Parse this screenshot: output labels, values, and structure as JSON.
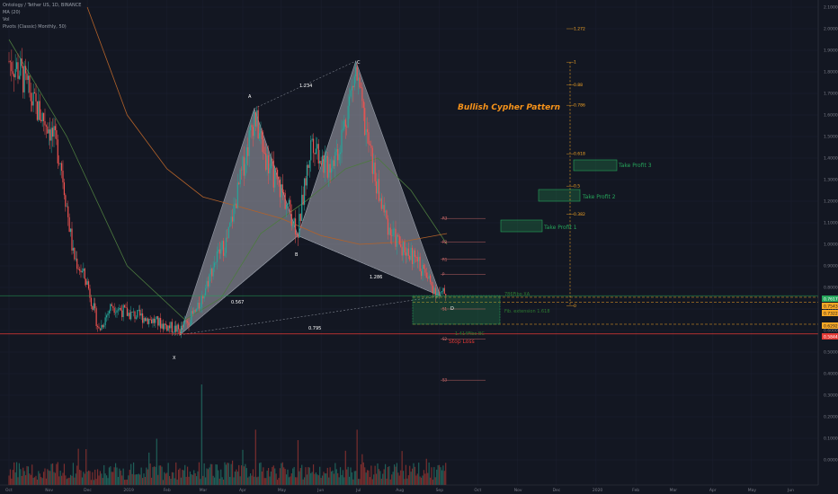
{
  "legend": {
    "symbol_line": "Ontology / Tether US, 1D, BINANCE",
    "ma_line": "MA (20)",
    "vol_line": "Vol",
    "pivot_line": "Pivots (Classic) Monthly, 50)"
  },
  "annotations": {
    "title": "Bullish Cypher Pattern",
    "tp1": "Take Profit 1",
    "tp2": "Take Profit 2",
    "tp3": "Take Profit 3",
    "stop_loss": "Stop Loss",
    "fib786": "786Fibo XA",
    "fib_ext": "Fib. extension 1.618",
    "fib_bc": "1.414Fibo BC",
    "ratio_xab": "0.567",
    "ratio_abc": "1.234",
    "ratio_xd": "0.795",
    "ratio_bcd": "1.286",
    "pt_x": "X",
    "pt_a": "A",
    "pt_b": "B",
    "pt_c": "C",
    "pt_d": "D"
  },
  "price_tags": {
    "current": "0.7617",
    "orange1": "0.7543",
    "orange2": "0.7322",
    "orange3": "0.6292",
    "red": "0.5844"
  },
  "fib_levels": [
    {
      "label": "1.272",
      "price": 2.0
    },
    {
      "label": "1",
      "price": 1.845
    },
    {
      "label": "0.88",
      "price": 1.74
    },
    {
      "label": "0.786",
      "price": 1.645
    },
    {
      "label": "0.618",
      "price": 1.42
    },
    {
      "label": "0.5",
      "price": 1.27
    },
    {
      "label": "0.382",
      "price": 1.14
    },
    {
      "label": "0",
      "price": 0.715
    }
  ],
  "pivots": [
    "R3",
    "R2",
    "R1",
    "P",
    "S1",
    "S2",
    "S3"
  ],
  "chart_data": {
    "type": "line",
    "title": "Bullish Cypher Pattern",
    "x_ticks": [
      "Oct",
      "Nov",
      "Dec",
      "2019",
      "Feb",
      "Mar",
      "Apr",
      "May",
      "Jun",
      "Jul",
      "Aug",
      "Sep",
      "Oct",
      "Nov",
      "Dec",
      "2020",
      "Feb",
      "Mar",
      "Apr",
      "May",
      "Jun"
    ],
    "y_ticks": [
      "2.1000",
      "2.0000",
      "1.9000",
      "1.8000",
      "1.7000",
      "1.6000",
      "1.5000",
      "1.4000",
      "1.3000",
      "1.2000",
      "1.1000",
      "1.0000",
      "0.9000",
      "0.8000",
      "0.7000",
      "0.6000",
      "0.5000",
      "0.4000",
      "0.3000",
      "0.2000",
      "0.1000",
      "0.0000"
    ],
    "ylim": [
      -0.05,
      2.15
    ],
    "cypher_points": [
      {
        "name": "X",
        "date": "2019-02-11",
        "price": 0.58
      },
      {
        "name": "A",
        "date": "2019-04-10",
        "price": 1.63
      },
      {
        "name": "B",
        "date": "2019-05-14",
        "price": 1.04
      },
      {
        "name": "C",
        "date": "2019-06-28",
        "price": 1.85
      },
      {
        "name": "D",
        "date": "2019-09-02",
        "price": 0.76
      }
    ],
    "price_close": [
      [
        "2018-10-01",
        1.85
      ],
      [
        "2018-10-10",
        1.8
      ],
      [
        "2018-10-20",
        1.65
      ],
      [
        "2018-11-01",
        1.55
      ],
      [
        "2018-11-10",
        1.4
      ],
      [
        "2018-11-20",
        0.95
      ],
      [
        "2018-12-01",
        0.82
      ],
      [
        "2018-12-10",
        0.6
      ],
      [
        "2018-12-20",
        0.72
      ],
      [
        "2019-01-01",
        0.68
      ],
      [
        "2019-01-15",
        0.66
      ],
      [
        "2019-02-01",
        0.62
      ],
      [
        "2019-02-11",
        0.6
      ],
      [
        "2019-02-25",
        0.7
      ],
      [
        "2019-03-10",
        0.92
      ],
      [
        "2019-03-20",
        1.02
      ],
      [
        "2019-04-01",
        1.35
      ],
      [
        "2019-04-10",
        1.6
      ],
      [
        "2019-04-20",
        1.38
      ],
      [
        "2019-05-01",
        1.25
      ],
      [
        "2019-05-14",
        1.06
      ],
      [
        "2019-05-25",
        1.5
      ],
      [
        "2019-06-05",
        1.35
      ],
      [
        "2019-06-15",
        1.45
      ],
      [
        "2019-06-28",
        1.8
      ],
      [
        "2019-07-05",
        1.55
      ],
      [
        "2019-07-15",
        1.25
      ],
      [
        "2019-07-25",
        1.05
      ],
      [
        "2019-08-05",
        0.98
      ],
      [
        "2019-08-15",
        0.92
      ],
      [
        "2019-08-25",
        0.82
      ],
      [
        "2019-09-02",
        0.76
      ],
      [
        "2019-09-07",
        0.78
      ]
    ],
    "ma_green": [
      [
        "2018-10-01",
        1.95
      ],
      [
        "2018-11-15",
        1.5
      ],
      [
        "2019-01-01",
        0.9
      ],
      [
        "2019-02-15",
        0.65
      ],
      [
        "2019-03-15",
        0.75
      ],
      [
        "2019-04-15",
        1.05
      ],
      [
        "2019-05-20",
        1.2
      ],
      [
        "2019-06-20",
        1.35
      ],
      [
        "2019-07-15",
        1.4
      ],
      [
        "2019-08-10",
        1.25
      ],
      [
        "2019-09-07",
        1.0
      ]
    ],
    "ma_orange": [
      [
        "2018-12-01",
        2.1
      ],
      [
        "2019-01-01",
        1.6
      ],
      [
        "2019-02-01",
        1.35
      ],
      [
        "2019-03-01",
        1.22
      ],
      [
        "2019-04-01",
        1.17
      ],
      [
        "2019-05-01",
        1.12
      ],
      [
        "2019-06-01",
        1.04
      ],
      [
        "2019-07-01",
        1.0
      ],
      [
        "2019-08-01",
        1.01
      ],
      [
        "2019-09-07",
        1.05
      ]
    ],
    "volume_max": 1.0
  }
}
